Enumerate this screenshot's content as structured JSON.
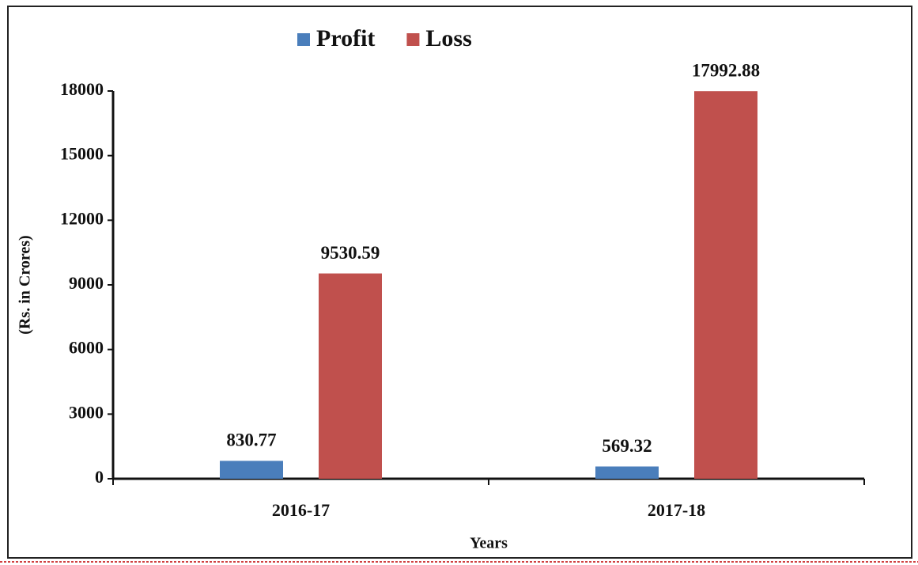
{
  "chart_data": {
    "type": "bar",
    "x_label": "Years",
    "y_label": "(Rs. in Crores)",
    "categories": [
      "2016-17",
      "2017-18"
    ],
    "series": [
      {
        "name": "Profit",
        "color": "#4a7ebb",
        "values": [
          830.77,
          569.32
        ]
      },
      {
        "name": "Loss",
        "color": "#c0504d",
        "values": [
          9530.59,
          17992.88
        ]
      }
    ],
    "ylim": [
      0,
      18000
    ],
    "yticks": [
      0,
      3000,
      6000,
      9000,
      12000,
      15000,
      18000
    ],
    "legend": "top"
  }
}
